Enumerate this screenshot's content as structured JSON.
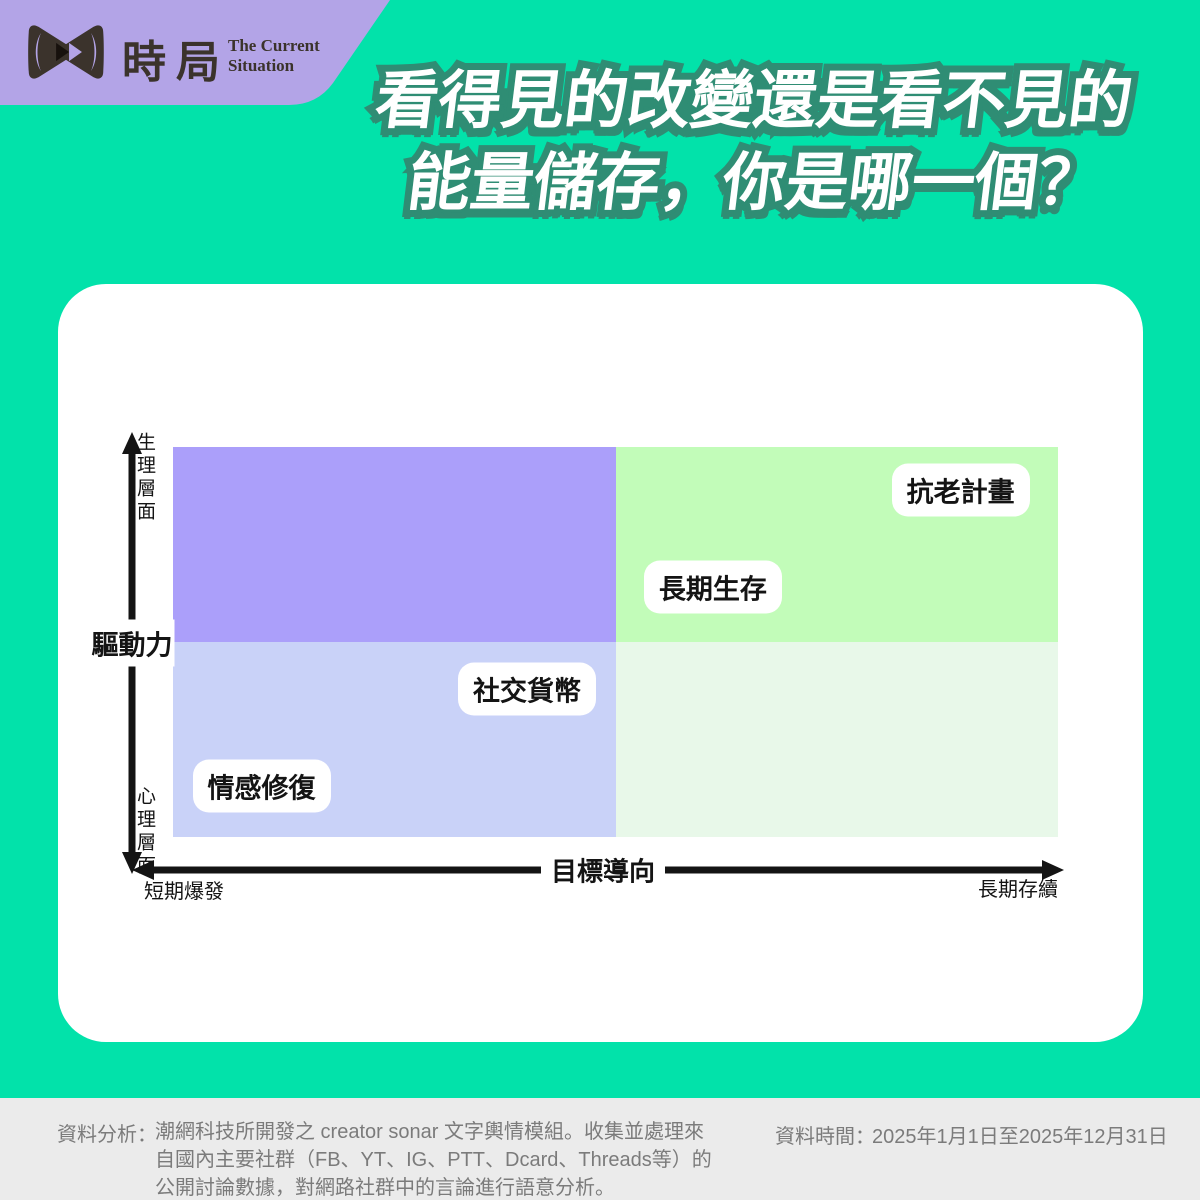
{
  "brand": {
    "name_cjk": "時局",
    "name_en_line1": "The Current",
    "name_en_line2": "Situation",
    "band_color": "#B3A4E7",
    "logo_color": "#3B332C"
  },
  "title": {
    "line1": "看得見的改變還是看不見的",
    "line2": "能量儲存，你是哪一個？",
    "fill_color": "#FFFFFF",
    "outline_color": "#2F8D74"
  },
  "chart_data": {
    "type": "scatter",
    "subtype": "quadrant_matrix",
    "title": "看得見的改變還是看不見的能量儲存，你是哪一個？",
    "x_axis": {
      "label": "目標導向",
      "min_label": "短期爆發",
      "max_label": "長期存續",
      "range": [
        0,
        1
      ]
    },
    "y_axis": {
      "label": "驅動力",
      "min_label": "心理層面",
      "max_label": "生理層面",
      "range": [
        0,
        1
      ]
    },
    "grid": false,
    "legend": false,
    "quadrant_colors": {
      "top_left": "#AB9FFA",
      "top_right": "#C2FCB9",
      "bottom_left": "#C9D2F8",
      "bottom_right": "#E8F8E9"
    },
    "points": [
      {
        "label": "抗老計畫",
        "x": 0.89,
        "y": 0.89
      },
      {
        "label": "長期生存",
        "x": 0.61,
        "y": 0.64
      },
      {
        "label": "社交貨幣",
        "x": 0.4,
        "y": 0.38
      },
      {
        "label": "情感修復",
        "x": 0.1,
        "y": 0.13
      }
    ]
  },
  "footer": {
    "analysis_label": "資料分析：",
    "analysis_lines": [
      "潮網科技所開發之 creator sonar 文字輿情模組。收集並處理來",
      "自國內主要社群（FB、YT、IG、PTT、Dcard、Threads等）的",
      "公開討論數據，對網路社群中的言論進行語意分析。"
    ],
    "time_label": "資料時間：",
    "time_value": "2025年1月1日至2025年12月31日"
  }
}
